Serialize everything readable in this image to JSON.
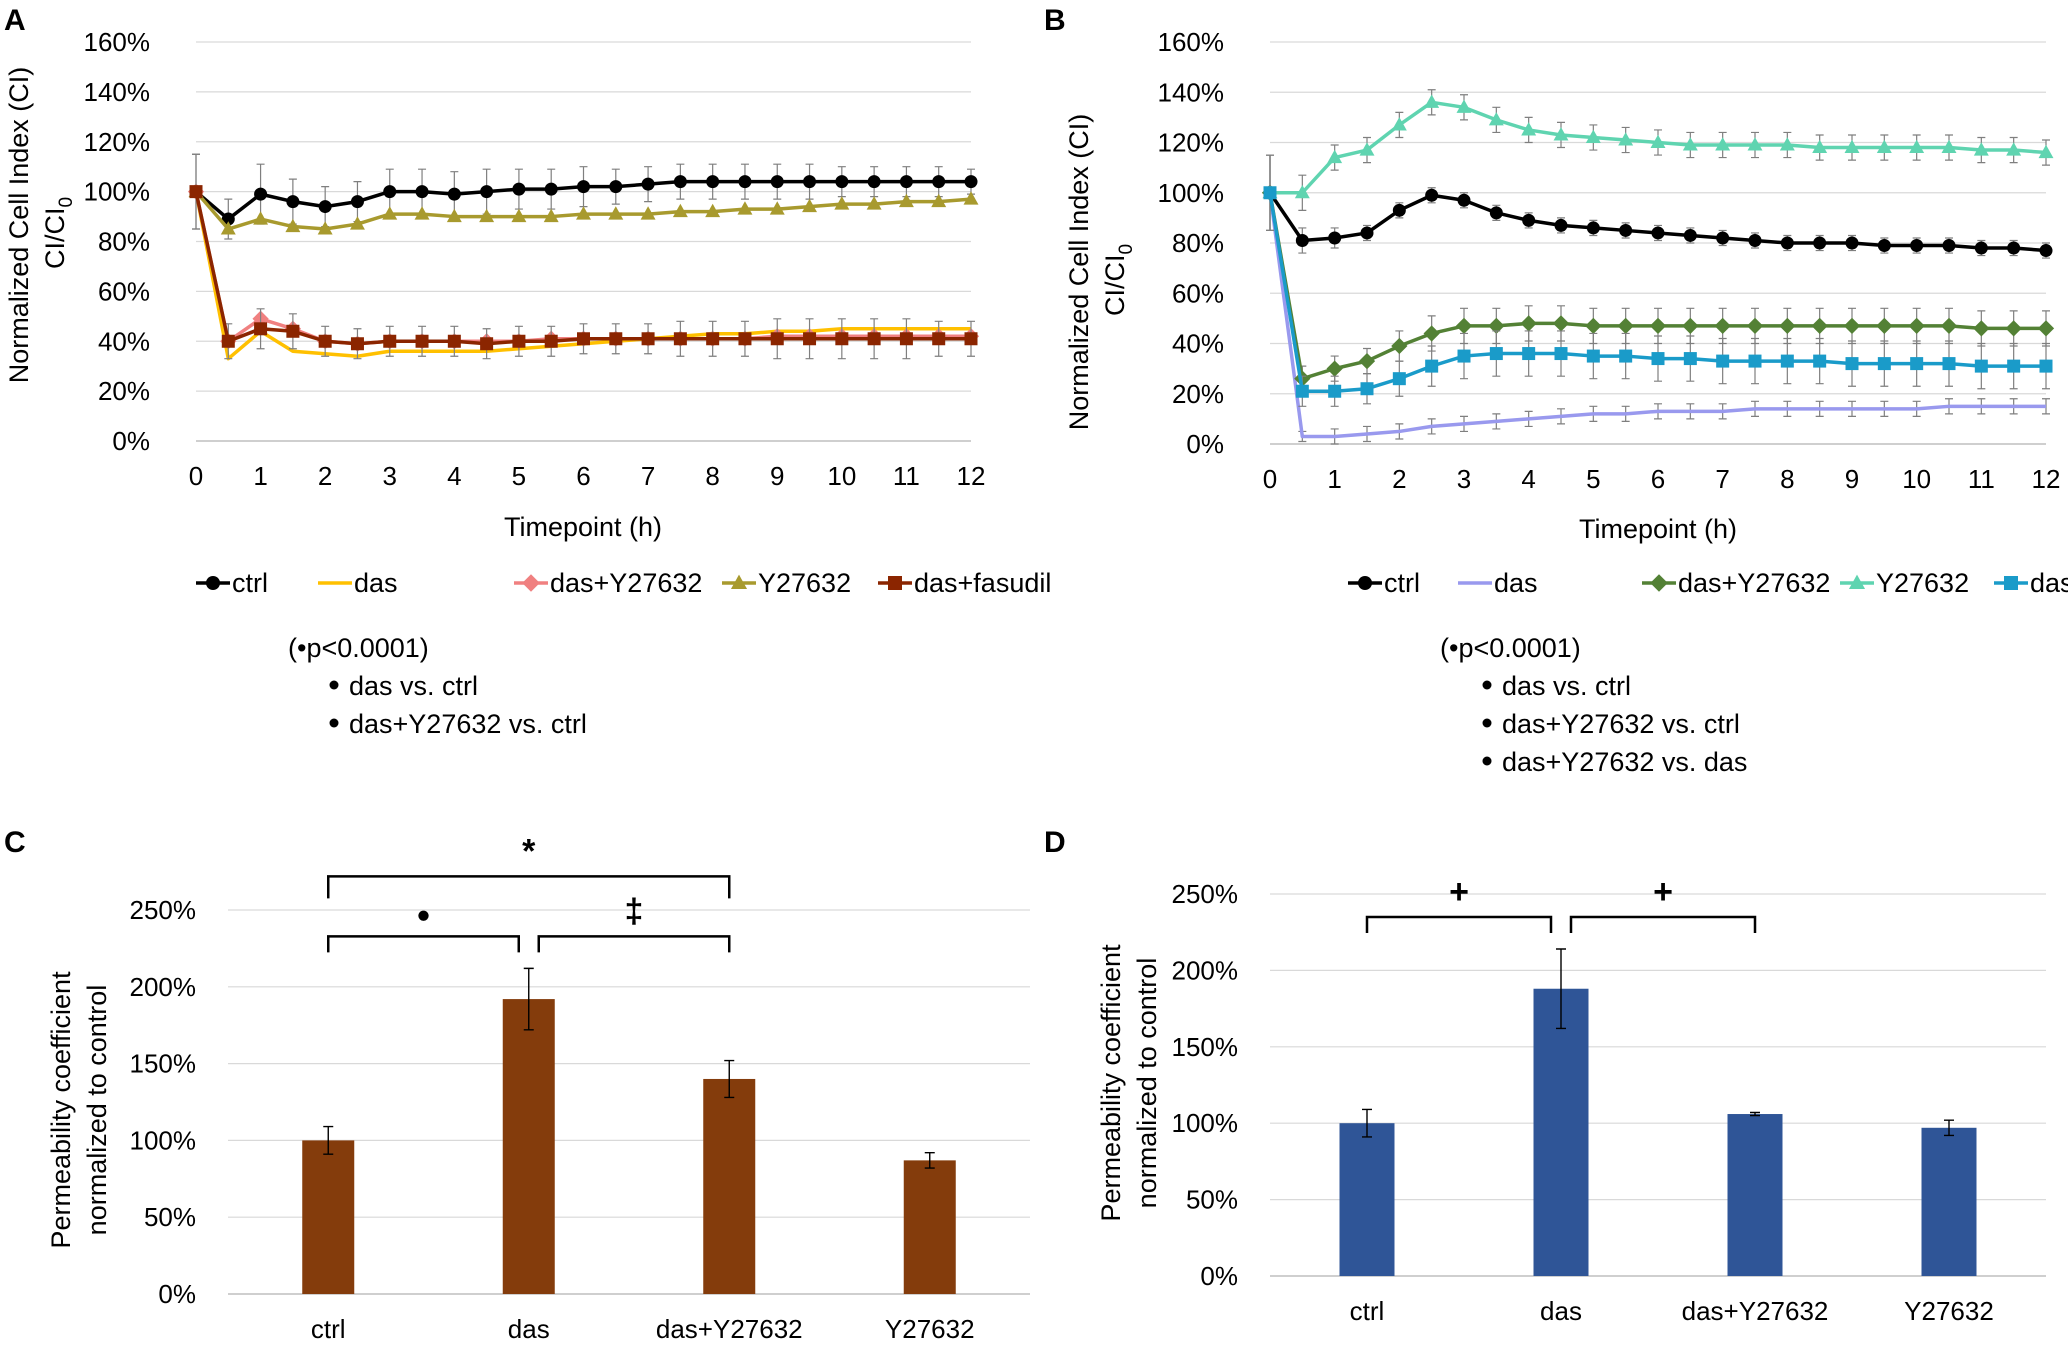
{
  "panels": {
    "A": {
      "letter": "A",
      "chart_data": {
        "type": "line",
        "ylabel_line1": "Normalized Cell Index (CI)",
        "ylabel_line2_main": "CI/CI",
        "ylabel_line2_sub": "0",
        "xlabel": "Timepoint (h)",
        "ylim": [
          0,
          160
        ],
        "yticks": [
          "0%",
          "20%",
          "40%",
          "60%",
          "80%",
          "100%",
          "120%",
          "140%",
          "160%"
        ],
        "xlim": [
          0,
          12
        ],
        "xticks": [
          "0",
          "1",
          "2",
          "3",
          "4",
          "5",
          "6",
          "7",
          "8",
          "9",
          "10",
          "11",
          "12"
        ],
        "x": [
          0,
          0.5,
          1,
          1.5,
          2,
          2.5,
          3,
          3.5,
          4,
          4.5,
          5,
          5.5,
          6,
          6.5,
          7,
          7.5,
          8,
          8.5,
          9,
          9.5,
          10,
          10.5,
          11,
          11.5,
          12
        ],
        "series": [
          {
            "name": "ctrl",
            "color": "#000000",
            "marker": "circle",
            "values": [
              100,
              89,
              99,
              96,
              94,
              96,
              100,
              100,
              99,
              100,
              101,
              101,
              102,
              102,
              103,
              104,
              104,
              104,
              104,
              104,
              104,
              104,
              104,
              104,
              104
            ],
            "err": [
              15,
              8,
              12,
              9,
              8,
              8,
              9,
              9,
              9,
              9,
              8,
              8,
              8,
              7,
              7,
              7,
              7,
              7,
              7,
              7,
              6,
              6,
              6,
              6,
              5
            ]
          },
          {
            "name": "das",
            "color": "#FFC000",
            "marker": "none",
            "values": [
              100,
              33,
              44,
              36,
              35,
              34,
              36,
              36,
              36,
              36,
              37,
              38,
              39,
              40,
              41,
              42,
              43,
              43,
              44,
              44,
              45,
              45,
              45,
              45,
              45
            ]
          },
          {
            "name": "das+Y27632",
            "color": "#F08080",
            "marker": "diamond",
            "values": [
              100,
              40,
              49,
              45,
              40,
              39,
              40,
              40,
              40,
              40,
              40,
              41,
              41,
              41,
              41,
              41,
              41,
              41,
              42,
              42,
              42,
              42,
              42,
              42,
              42
            ]
          },
          {
            "name": "Y27632",
            "color": "#A89A2E",
            "marker": "triangle",
            "values": [
              100,
              85,
              89,
              86,
              85,
              87,
              91,
              91,
              90,
              90,
              90,
              90,
              91,
              91,
              91,
              92,
              92,
              93,
              93,
              94,
              95,
              95,
              96,
              96,
              97
            ]
          },
          {
            "name": "das+fasudil",
            "color": "#8B2500",
            "marker": "square",
            "values": [
              100,
              40,
              45,
              44,
              40,
              39,
              40,
              40,
              40,
              39,
              40,
              40,
              41,
              41,
              41,
              41,
              41,
              41,
              41,
              41,
              41,
              41,
              41,
              41,
              41
            ],
            "err": [
              15,
              7,
              8,
              7,
              6,
              6,
              6,
              6,
              6,
              6,
              6,
              6,
              6,
              6,
              6,
              7,
              7,
              7,
              8,
              8,
              8,
              8,
              8,
              7,
              7
            ]
          }
        ]
      },
      "stats": {
        "header": "(•p<0.0001)",
        "items": [
          "das vs. ctrl",
          "das+Y27632 vs. ctrl"
        ]
      }
    },
    "B": {
      "letter": "B",
      "chart_data": {
        "type": "line",
        "ylabel_line1": "Normalized Cell Index (CI)",
        "ylabel_line2_main": "CI/CI",
        "ylabel_line2_sub": "0",
        "xlabel": "Timepoint (h)",
        "ylim": [
          0,
          160
        ],
        "yticks": [
          "0%",
          "20%",
          "40%",
          "60%",
          "80%",
          "100%",
          "120%",
          "140%",
          "160%"
        ],
        "xlim": [
          0,
          12
        ],
        "xticks": [
          "0",
          "1",
          "2",
          "3",
          "4",
          "5",
          "6",
          "7",
          "8",
          "9",
          "10",
          "11",
          "12"
        ],
        "x": [
          0,
          0.5,
          1,
          1.5,
          2,
          2.5,
          3,
          3.5,
          4,
          4.5,
          5,
          5.5,
          6,
          6.5,
          7,
          7.5,
          8,
          8.5,
          9,
          9.5,
          10,
          10.5,
          11,
          11.5,
          12
        ],
        "series": [
          {
            "name": "ctrl",
            "color": "#000000",
            "marker": "circle",
            "values": [
              100,
              81,
              82,
              84,
              93,
              99,
              97,
              92,
              89,
              87,
              86,
              85,
              84,
              83,
              82,
              81,
              80,
              80,
              80,
              79,
              79,
              79,
              78,
              78,
              77
            ],
            "err": [
              15,
              5,
              4,
              3,
              3,
              3,
              3,
              3,
              3,
              3,
              3,
              3,
              3,
              3,
              3,
              3,
              3,
              3,
              3,
              3,
              3,
              3,
              3,
              3,
              3
            ]
          },
          {
            "name": "das",
            "color": "#9999EE",
            "marker": "none",
            "values": [
              100,
              3,
              3,
              4,
              5,
              7,
              8,
              9,
              10,
              11,
              12,
              12,
              13,
              13,
              13,
              14,
              14,
              14,
              14,
              14,
              14,
              15,
              15,
              15,
              15
            ],
            "err": [
              15,
              2,
              3,
              3,
              3,
              3,
              3,
              3,
              3,
              3,
              3,
              3,
              3,
              3,
              3,
              3,
              3,
              3,
              3,
              3,
              3,
              3,
              3,
              3,
              3
            ]
          },
          {
            "name": "das+Y27632",
            "color": "#538135",
            "marker": "diamond",
            "values": [
              100,
              26,
              30,
              33,
              39,
              44,
              47,
              47,
              48,
              48,
              47,
              47,
              47,
              47,
              47,
              47,
              47,
              47,
              47,
              47,
              47,
              47,
              46,
              46,
              46
            ],
            "err": [
              15,
              5,
              5,
              5,
              6,
              7,
              7,
              7,
              7,
              7,
              7,
              7,
              7,
              7,
              7,
              7,
              7,
              7,
              7,
              7,
              7,
              7,
              7,
              7,
              7
            ]
          },
          {
            "name": "Y27632",
            "color": "#5FD4B0",
            "marker": "triangle",
            "values": [
              100,
              100,
              114,
              117,
              127,
              136,
              134,
              129,
              125,
              123,
              122,
              121,
              120,
              119,
              119,
              119,
              119,
              118,
              118,
              118,
              118,
              118,
              117,
              117,
              116
            ],
            "err": [
              15,
              7,
              5,
              5,
              5,
              5,
              5,
              5,
              5,
              5,
              5,
              5,
              5,
              5,
              5,
              5,
              5,
              5,
              5,
              5,
              5,
              5,
              5,
              5,
              5
            ]
          },
          {
            "name": "das+fasudil",
            "color": "#1A9BC9",
            "marker": "square",
            "values": [
              100,
              21,
              21,
              22,
              26,
              31,
              35,
              36,
              36,
              36,
              35,
              35,
              34,
              34,
              33,
              33,
              33,
              33,
              32,
              32,
              32,
              32,
              31,
              31,
              31
            ],
            "err": [
              15,
              6,
              6,
              6,
              7,
              8,
              9,
              9,
              9,
              9,
              9,
              9,
              9,
              9,
              9,
              9,
              9,
              9,
              9,
              9,
              9,
              9,
              9,
              9,
              9
            ]
          }
        ]
      },
      "stats": {
        "header": "(•p<0.0001)",
        "items": [
          "das vs. ctrl",
          "das+Y27632 vs. ctrl",
          "das+Y27632 vs. das"
        ]
      }
    },
    "C": {
      "letter": "C",
      "chart_data": {
        "type": "bar",
        "ylabel_line1": "Permeability coefficient",
        "ylabel_line2": "normalized to control",
        "categories": [
          "ctrl",
          "das",
          "das+Y27632",
          "Y27632"
        ],
        "values": [
          100,
          192,
          140,
          87
        ],
        "errors": [
          9,
          20,
          12,
          5
        ],
        "color": "#843C0C",
        "ylim": [
          0,
          250
        ],
        "yticks": [
          "0%",
          "50%",
          "100%",
          "150%",
          "200%",
          "250%"
        ],
        "brackets": [
          {
            "from": 0,
            "to": 2,
            "symbol": "*"
          },
          {
            "from": 0,
            "to": 1,
            "symbol": "●"
          },
          {
            "from": 1,
            "to": 2,
            "symbol": "‡"
          }
        ]
      }
    },
    "D": {
      "letter": "D",
      "chart_data": {
        "type": "bar",
        "ylabel_line1": "Permeability coefficient",
        "ylabel_line2": "normalized to control",
        "categories": [
          "ctrl",
          "das",
          "das+Y27632",
          "Y27632"
        ],
        "values": [
          100,
          188,
          106,
          97
        ],
        "errors": [
          9,
          26,
          1,
          5
        ],
        "color": "#2F5597",
        "ylim": [
          0,
          250
        ],
        "yticks": [
          "0%",
          "50%",
          "100%",
          "150%",
          "200%",
          "250%"
        ],
        "brackets": [
          {
            "from": 0,
            "to": 1,
            "symbol": "+"
          },
          {
            "from": 1,
            "to": 2,
            "symbol": "+"
          }
        ]
      }
    }
  }
}
